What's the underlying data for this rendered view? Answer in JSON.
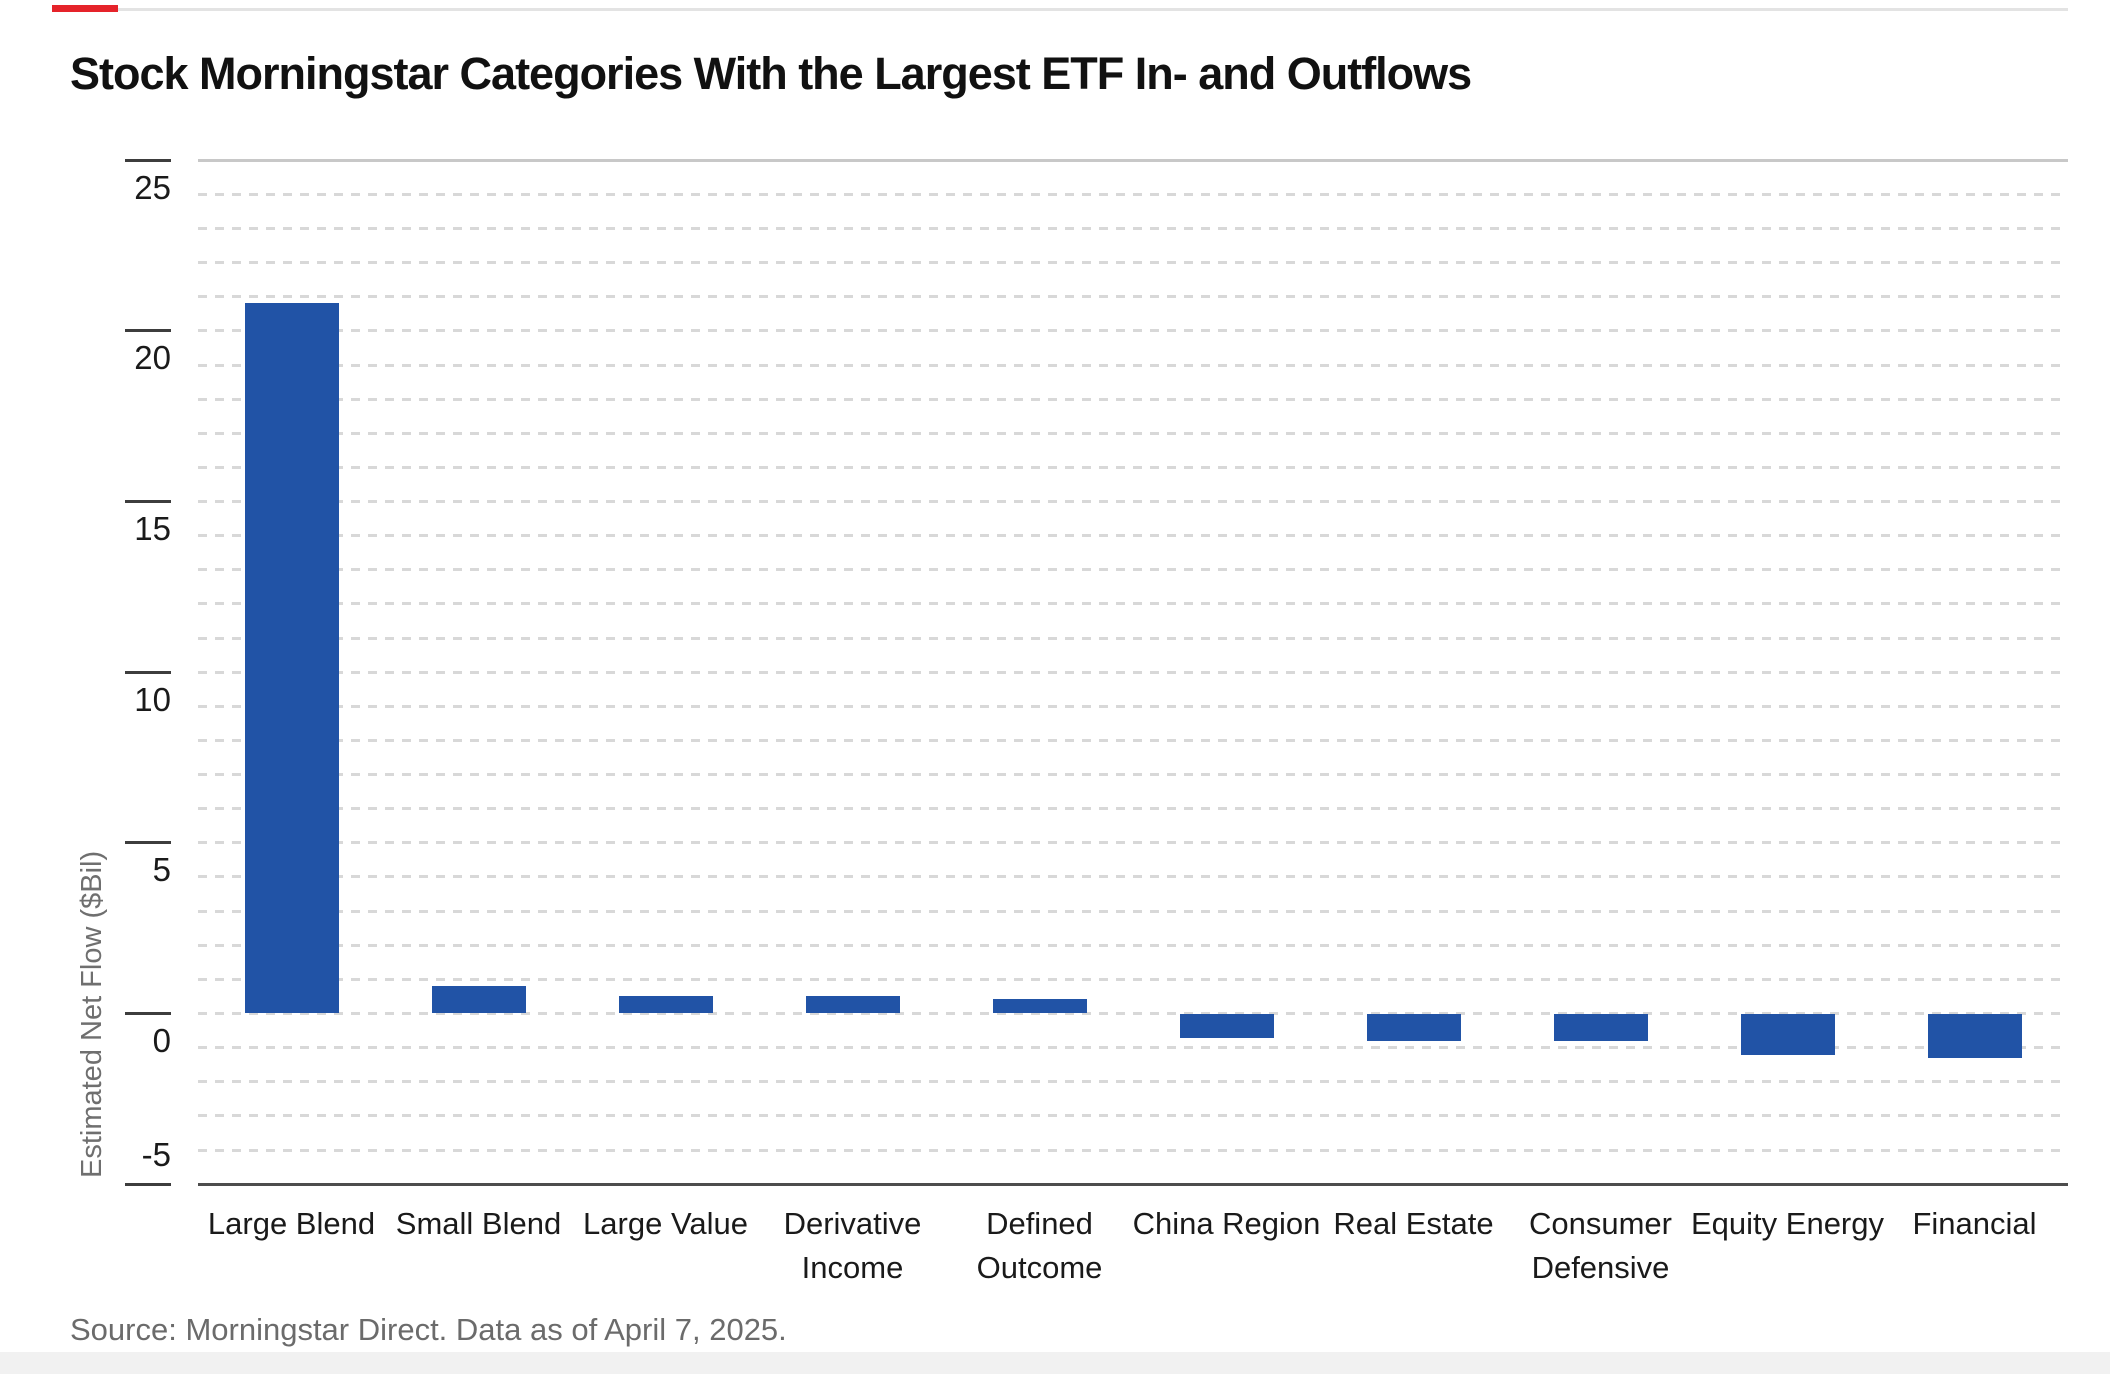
{
  "page": {
    "accent_color": "#e5232a",
    "rule_color": "#e3e3e3",
    "background_color": "#ffffff",
    "footer_strip_color": "#f1f1f1"
  },
  "title": "Stock Morningstar Categories With the Largest ETF In- and Outflows",
  "source": "Source: Morningstar Direct. Data as of April 7, 2025.",
  "chart_data": {
    "type": "bar",
    "categories": [
      "Large Blend",
      "Small Blend",
      "Large Value",
      "Derivative Income",
      "Defined Outcome",
      "China Region",
      "Real Estate",
      "Consumer Defensive",
      "Equity Energy",
      "Financial"
    ],
    "category_label_lines": [
      [
        "Large Blend"
      ],
      [
        "Small Blend"
      ],
      [
        "Large Value"
      ],
      [
        "Derivative",
        "Income"
      ],
      [
        "Defined",
        "Outcome"
      ],
      [
        "China Region"
      ],
      [
        "Real Estate"
      ],
      [
        "Consumer",
        "Defensive"
      ],
      [
        "Equity Energy"
      ],
      [
        "Financial"
      ]
    ],
    "values": [
      20.8,
      0.8,
      0.5,
      0.5,
      0.4,
      -0.7,
      -0.8,
      -0.8,
      -1.2,
      -1.3
    ],
    "title": "Stock Morningstar Categories With the Largest ETF In- and Outflows",
    "xlabel": "",
    "ylabel": "Estimated Net Flow ($Bil)",
    "ylim": [
      -5,
      25
    ],
    "yticks": [
      25,
      20,
      15,
      10,
      5,
      0,
      -5
    ],
    "gridline_interval": 1,
    "grid": "dashed-horizontal",
    "legend": "none",
    "bar_color": "#2153a6",
    "gridline_color": "#d8d8d8",
    "plot_border_top_color": "#c8c8c8",
    "axis_line_color": "#4d4d4d",
    "tick_mark_color": "#3d3d3d",
    "tick_label_color": "#1a1a1a",
    "category_label_color": "#1a1a1a",
    "axis_title_color": "#6f6f6f",
    "source_color": "#6b6b6b",
    "title_color": "#111111"
  }
}
